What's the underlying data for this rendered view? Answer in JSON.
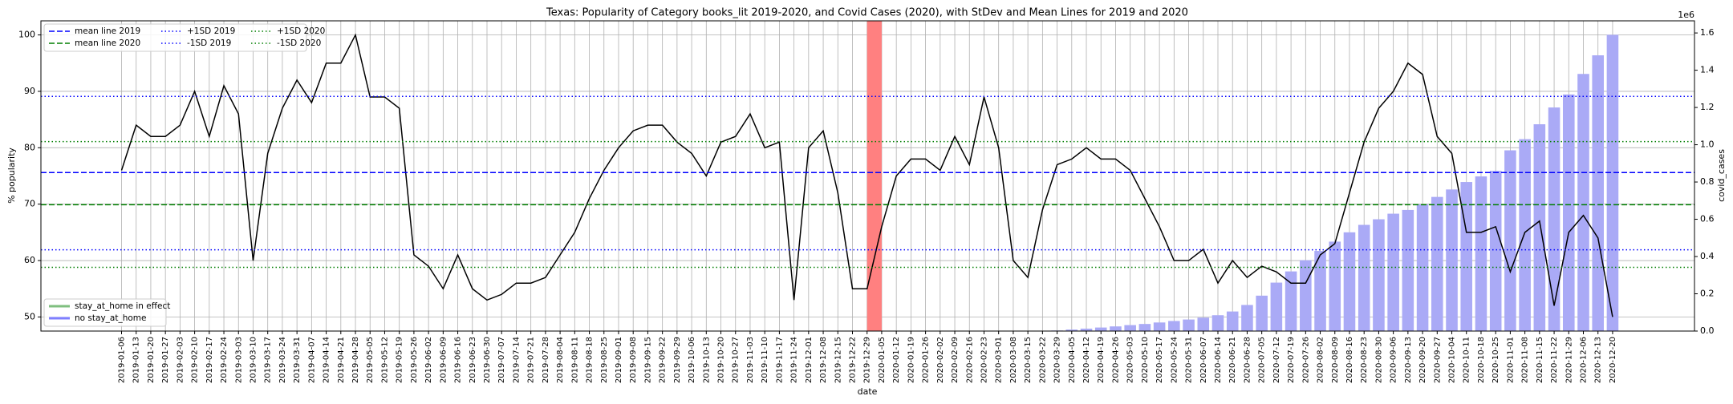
{
  "chart_data": {
    "type": "combo",
    "title": "Texas: Popularity of Category books_lit 2019-2020, and Covid Cases (2020), with StDev and Mean Lines for 2019 and 2020",
    "x_label": "date",
    "y_label": "% popularity",
    "y2_label": "covid_cases",
    "y2_offset_label": "1e6",
    "categories": [
      "2019-01-06",
      "2019-01-13",
      "2019-01-20",
      "2019-01-27",
      "2019-02-03",
      "2019-02-10",
      "2019-02-17",
      "2019-02-24",
      "2019-03-03",
      "2019-03-10",
      "2019-03-17",
      "2019-03-24",
      "2019-03-31",
      "2019-04-07",
      "2019-04-14",
      "2019-04-21",
      "2019-04-28",
      "2019-05-05",
      "2019-05-12",
      "2019-05-19",
      "2019-05-26",
      "2019-06-02",
      "2019-06-09",
      "2019-06-16",
      "2019-06-23",
      "2019-06-30",
      "2019-07-07",
      "2019-07-14",
      "2019-07-21",
      "2019-07-28",
      "2019-08-04",
      "2019-08-11",
      "2019-08-18",
      "2019-08-25",
      "2019-09-01",
      "2019-09-08",
      "2019-09-15",
      "2019-09-22",
      "2019-09-29",
      "2019-10-06",
      "2019-10-13",
      "2019-10-20",
      "2019-10-27",
      "2019-11-03",
      "2019-11-10",
      "2019-11-17",
      "2019-11-24",
      "2019-12-01",
      "2019-12-08",
      "2019-12-15",
      "2019-12-22",
      "2019-12-29",
      "2020-01-05",
      "2020-01-12",
      "2020-01-19",
      "2020-01-26",
      "2020-02-02",
      "2020-02-09",
      "2020-02-16",
      "2020-02-23",
      "2020-03-01",
      "2020-03-08",
      "2020-03-15",
      "2020-03-22",
      "2020-03-29",
      "2020-04-05",
      "2020-04-12",
      "2020-04-19",
      "2020-04-26",
      "2020-05-03",
      "2020-05-10",
      "2020-05-17",
      "2020-05-24",
      "2020-05-31",
      "2020-06-07",
      "2020-06-14",
      "2020-06-21",
      "2020-06-28",
      "2020-07-05",
      "2020-07-12",
      "2020-07-19",
      "2020-07-26",
      "2020-08-02",
      "2020-08-09",
      "2020-08-16",
      "2020-08-23",
      "2020-08-30",
      "2020-09-06",
      "2020-09-13",
      "2020-09-20",
      "2020-09-27",
      "2020-10-04",
      "2020-10-11",
      "2020-10-18",
      "2020-10-25",
      "2020-11-01",
      "2020-11-08",
      "2020-11-15",
      "2020-11-22",
      "2020-11-29",
      "2020-12-06",
      "2020-12-13",
      "2020-12-20"
    ],
    "series": [
      {
        "type": "bar",
        "axis": "y2",
        "color": "#aaaaf6",
        "values": [
          null,
          null,
          null,
          null,
          null,
          null,
          null,
          null,
          null,
          null,
          null,
          null,
          null,
          null,
          null,
          null,
          null,
          null,
          null,
          null,
          null,
          null,
          null,
          null,
          null,
          null,
          null,
          null,
          null,
          null,
          null,
          null,
          null,
          null,
          null,
          null,
          null,
          null,
          null,
          null,
          null,
          null,
          null,
          null,
          null,
          null,
          null,
          null,
          null,
          null,
          null,
          null,
          0,
          0,
          0,
          0,
          0,
          0,
          0,
          0,
          0,
          0,
          0,
          2000,
          3000,
          8000,
          13000,
          19000,
          25000,
          32000,
          38000,
          46000,
          54000,
          62000,
          72000,
          85000,
          105000,
          140000,
          190000,
          260000,
          320000,
          380000,
          430000,
          480000,
          530000,
          570000,
          600000,
          630000,
          650000,
          680000,
          720000,
          760000,
          800000,
          830000,
          860000,
          970000,
          1030000,
          1110000,
          1200000,
          1270000,
          1380000,
          1480000,
          1590000
        ]
      },
      {
        "type": "line",
        "axis": "y",
        "color": "#000000",
        "values": [
          76,
          84,
          82,
          82,
          84,
          90,
          82,
          91,
          86,
          60,
          79,
          87,
          92,
          88,
          95,
          95,
          100,
          89,
          89,
          87,
          61,
          59,
          55,
          61,
          55,
          53,
          54,
          56,
          56,
          57,
          61,
          65,
          71,
          76,
          80,
          83,
          84,
          84,
          81,
          79,
          75,
          81,
          82,
          86,
          80,
          81,
          53,
          80,
          83,
          72,
          55,
          55,
          66,
          75,
          78,
          78,
          76,
          82,
          77,
          89,
          80,
          60,
          57,
          69,
          77,
          78,
          80,
          78,
          78,
          76,
          71,
          66,
          60,
          60,
          62,
          56,
          60,
          57,
          59,
          58,
          56,
          56,
          61,
          63,
          72,
          81,
          87,
          90,
          95,
          93,
          82,
          79,
          65,
          65,
          66,
          58,
          65,
          67,
          52,
          65,
          68,
          64,
          50
        ]
      }
    ],
    "reference_lines": [
      {
        "name": "mean line 2019",
        "value": 75.6,
        "color": "#0000ff",
        "style": "dashed"
      },
      {
        "name": "mean line 2020",
        "value": 69.9,
        "color": "#007f00",
        "style": "dashed"
      },
      {
        "name": "+1SD 2019",
        "value": 89.1,
        "color": "#0000ff",
        "style": "dotted"
      },
      {
        "name": "-1SD 2019",
        "value": 61.9,
        "color": "#0000ff",
        "style": "dotted"
      },
      {
        "name": "+1SD 2020",
        "value": 81.1,
        "color": "#007f00",
        "style": "dotted"
      },
      {
        "name": "-1SD 2020",
        "value": 58.8,
        "color": "#007f00",
        "style": "dotted"
      }
    ],
    "span": {
      "from": "2019-12-29",
      "to": "2020-01-05",
      "color": "#ff8080"
    },
    "status_legend": [
      {
        "name": "stay_at_home in effect",
        "color": "#7fbf7f"
      },
      {
        "name": "no stay_at_home",
        "color": "#7f7fff"
      }
    ],
    "legend": "upper left",
    "grid": true,
    "ylim": [
      47.5,
      102.5
    ],
    "yticks": [
      50,
      60,
      70,
      80,
      90,
      100
    ],
    "y2lim": [
      0,
      1665000
    ],
    "y2ticks": [
      {
        "value": 0,
        "label": "0.0"
      },
      {
        "value": 200000,
        "label": "0.2"
      },
      {
        "value": 400000,
        "label": "0.4"
      },
      {
        "value": 600000,
        "label": "0.6"
      },
      {
        "value": 800000,
        "label": "0.8"
      },
      {
        "value": 1000000,
        "label": "1.0"
      },
      {
        "value": 1200000,
        "label": "1.2"
      },
      {
        "value": 1400000,
        "label": "1.4"
      },
      {
        "value": 1600000,
        "label": "1.6"
      }
    ]
  }
}
